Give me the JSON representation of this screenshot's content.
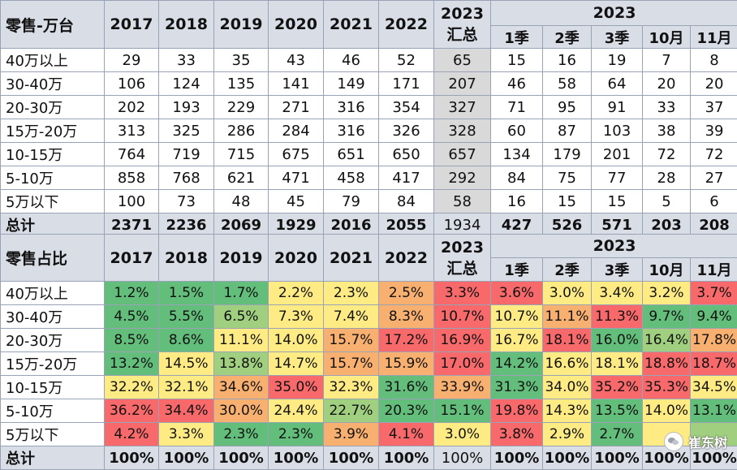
{
  "sales": {
    "header": {
      "title": "零售-万台",
      "years": [
        "2017",
        "2018",
        "2019",
        "2020",
        "2021",
        "2022"
      ],
      "summary_year": "2023",
      "summary_label": "汇总",
      "group_year": "2023",
      "periods": [
        "1季",
        "2季",
        "3季",
        "10月",
        "11月"
      ]
    },
    "rows": [
      {
        "label": "40万以上",
        "values": [
          "29",
          "33",
          "35",
          "43",
          "46",
          "52",
          "65",
          "15",
          "16",
          "19",
          "7",
          "8"
        ]
      },
      {
        "label": "30-40万",
        "values": [
          "106",
          "124",
          "135",
          "141",
          "149",
          "171",
          "207",
          "46",
          "58",
          "64",
          "20",
          "20"
        ]
      },
      {
        "label": "20-30万",
        "values": [
          "202",
          "193",
          "229",
          "271",
          "316",
          "354",
          "327",
          "71",
          "95",
          "91",
          "33",
          "37"
        ]
      },
      {
        "label": "15万-20万",
        "values": [
          "313",
          "325",
          "286",
          "284",
          "316",
          "326",
          "328",
          "60",
          "87",
          "103",
          "38",
          "39"
        ]
      },
      {
        "label": "10-15万",
        "values": [
          "764",
          "719",
          "715",
          "675",
          "651",
          "650",
          "657",
          "134",
          "179",
          "201",
          "72",
          "72"
        ]
      },
      {
        "label": "5-10万",
        "values": [
          "858",
          "768",
          "621",
          "471",
          "458",
          "417",
          "292",
          "84",
          "75",
          "77",
          "28",
          "27"
        ]
      },
      {
        "label": "5万以下",
        "values": [
          "100",
          "73",
          "48",
          "45",
          "79",
          "84",
          "58",
          "16",
          "15",
          "15",
          "5",
          "6"
        ]
      }
    ],
    "total": {
      "label": "总计",
      "values": [
        "2371",
        "2236",
        "2069",
        "1929",
        "2016",
        "2055",
        "1934",
        "427",
        "526",
        "571",
        "203",
        "208"
      ]
    }
  },
  "share": {
    "header": {
      "title": "零售占比",
      "years": [
        "2017",
        "2018",
        "2019",
        "2020",
        "2021",
        "2022"
      ],
      "summary_year": "2023",
      "summary_label": "汇总",
      "group_year": "2023",
      "periods": [
        "1季",
        "2季",
        "3季",
        "10月",
        "11月"
      ]
    },
    "rows": [
      {
        "label": "40万以上",
        "values": [
          "1.2%",
          "1.5%",
          "1.7%",
          "2.2%",
          "2.3%",
          "2.5%",
          "3.3%",
          "3.6%",
          "3.0%",
          "3.4%",
          "3.2%",
          "3.7%"
        ],
        "colors": [
          "#63be7b",
          "#63be7b",
          "#63be7b",
          "#ffeb84",
          "#ffeb84",
          "#f8b070",
          "#f8696b",
          "#f8696b",
          "#ffeb84",
          "#ffeb84",
          "#ffeb84",
          "#f8696b"
        ]
      },
      {
        "label": "30-40万",
        "values": [
          "4.5%",
          "5.5%",
          "6.5%",
          "7.3%",
          "7.4%",
          "8.3%",
          "10.7%",
          "10.7%",
          "11.1%",
          "11.3%",
          "9.7%",
          "9.4%"
        ],
        "colors": [
          "#63be7b",
          "#63be7b",
          "#9fcf7f",
          "#ffeb84",
          "#ffeb84",
          "#f8b070",
          "#f8696b",
          "#ffeb84",
          "#f8b070",
          "#f8696b",
          "#63be7b",
          "#63be7b"
        ]
      },
      {
        "label": "20-30万",
        "values": [
          "8.5%",
          "8.6%",
          "11.1%",
          "14.0%",
          "15.7%",
          "17.2%",
          "16.9%",
          "16.7%",
          "18.1%",
          "16.0%",
          "16.4%",
          "17.8%"
        ],
        "colors": [
          "#63be7b",
          "#63be7b",
          "#ffeb84",
          "#ffeb84",
          "#f8b070",
          "#f8696b",
          "#f8696b",
          "#ffeb84",
          "#f8696b",
          "#63be7b",
          "#9fcf7f",
          "#f8b070"
        ]
      },
      {
        "label": "15万-20万",
        "values": [
          "13.2%",
          "14.5%",
          "13.8%",
          "14.7%",
          "15.7%",
          "15.9%",
          "17.0%",
          "14.2%",
          "16.6%",
          "18.1%",
          "18.8%",
          "18.7%"
        ],
        "colors": [
          "#63be7b",
          "#ffeb84",
          "#9fcf7f",
          "#ffeb84",
          "#f8b070",
          "#f8b070",
          "#f8696b",
          "#63be7b",
          "#ffeb84",
          "#ffeb84",
          "#f8696b",
          "#f8696b"
        ]
      },
      {
        "label": "10-15万",
        "values": [
          "32.2%",
          "32.1%",
          "34.6%",
          "35.0%",
          "32.3%",
          "31.6%",
          "33.9%",
          "31.3%",
          "34.0%",
          "35.2%",
          "35.3%",
          "34.5%"
        ],
        "colors": [
          "#ffeb84",
          "#ffeb84",
          "#f8b070",
          "#f8696b",
          "#ffeb84",
          "#63be7b",
          "#f8b070",
          "#63be7b",
          "#ffeb84",
          "#f8696b",
          "#f8696b",
          "#ffeb84"
        ]
      },
      {
        "label": "5-10万",
        "values": [
          "36.2%",
          "34.4%",
          "30.0%",
          "24.4%",
          "22.7%",
          "20.3%",
          "15.1%",
          "19.8%",
          "14.3%",
          "13.5%",
          "14.0%",
          "13.1%"
        ],
        "colors": [
          "#f8696b",
          "#f8696b",
          "#f8b070",
          "#ffeb84",
          "#9fcf7f",
          "#63be7b",
          "#63be7b",
          "#f8696b",
          "#ffeb84",
          "#63be7b",
          "#ffeb84",
          "#63be7b"
        ]
      },
      {
        "label": "5万以下",
        "values": [
          "4.2%",
          "3.3%",
          "2.3%",
          "2.3%",
          "3.9%",
          "4.1%",
          "3.0%",
          "3.8%",
          "2.9%",
          "2.7%",
          "",
          ""
        ],
        "colors": [
          "#f8696b",
          "#ffeb84",
          "#63be7b",
          "#63be7b",
          "#f8b070",
          "#f8696b",
          "#ffeb84",
          "#f8696b",
          "#ffeb84",
          "#63be7b",
          "#ffeb84",
          "#9fcf7f"
        ]
      }
    ],
    "total": {
      "label": "总计",
      "values": [
        "100%",
        "100%",
        "100%",
        "100%",
        "100%",
        "100%",
        "100%",
        "100%",
        "100%",
        "100%",
        "100%",
        "100%"
      ]
    }
  },
  "watermark": {
    "text": "崔东树",
    "icon": "wechat-logo-icon"
  }
}
